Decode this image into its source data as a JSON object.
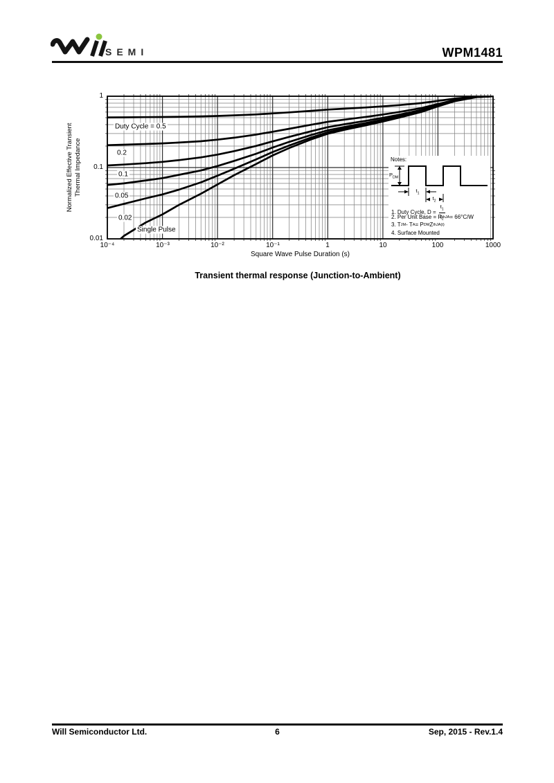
{
  "header": {
    "logo": {
      "brand": "Will",
      "suffix": "SEMI",
      "dot_color": "#8bc53f"
    },
    "part_number": "WPM1481"
  },
  "caption": "Transient thermal response (Junction-to-Ambient)",
  "chart_data": {
    "type": "line",
    "title": "Transient thermal response (Junction-to-Ambient)",
    "xlabel": "Square Wave Pulse Duration (s)",
    "ylabel": [
      "Normalized Effective Transient",
      "Thermal Impedance"
    ],
    "xscale": "log",
    "yscale": "log",
    "xlim": [
      0.0001,
      1000
    ],
    "ylim": [
      0.01,
      1
    ],
    "xtick_values": [
      0.0001,
      0.001,
      0.01,
      0.1,
      1,
      10,
      100,
      1000
    ],
    "xtick_labels": [
      "10⁻⁴",
      "10⁻³",
      "10⁻²",
      "10⁻¹",
      "1",
      "10",
      "100",
      "1000"
    ],
    "ytick_values": [
      1,
      0.1,
      0.01
    ],
    "ytick_labels": [
      "1",
      "0.1",
      "0.01"
    ],
    "grid": "log-log, major and minor gridlines on",
    "line_color": "#000000",
    "series": [
      {
        "name": "duty-0p5",
        "label": "Duty Cycle = 0.5",
        "duty_cycle": 0.5,
        "label_anchor": [
          0.00013,
          0.374
        ],
        "x": [
          0.0001,
          0.0002,
          0.0005,
          0.001,
          0.002,
          0.005,
          0.01,
          0.02,
          0.05,
          0.1,
          0.2,
          0.5,
          1,
          2,
          5,
          10,
          20,
          50,
          100,
          200,
          500,
          1000
        ],
        "y": [
          0.504,
          0.506,
          0.509,
          0.511,
          0.515,
          0.522,
          0.529,
          0.539,
          0.556,
          0.574,
          0.594,
          0.624,
          0.649,
          0.669,
          0.696,
          0.721,
          0.751,
          0.801,
          0.861,
          0.926,
          0.986,
          1.0
        ]
      },
      {
        "name": "duty-0p2",
        "label": "0.2",
        "duty_cycle": 0.2,
        "label_anchor": [
          0.00014,
          0.16
        ],
        "x": [
          0.0001,
          0.0002,
          0.0005,
          0.001,
          0.002,
          0.005,
          0.01,
          0.02,
          0.05,
          0.1,
          0.2,
          0.5,
          1,
          2,
          5,
          10,
          20,
          50,
          100,
          200,
          500,
          1000
        ],
        "y": [
          0.206,
          0.209,
          0.214,
          0.218,
          0.224,
          0.234,
          0.246,
          0.262,
          0.29,
          0.318,
          0.35,
          0.398,
          0.438,
          0.47,
          0.514,
          0.554,
          0.602,
          0.682,
          0.778,
          0.882,
          0.978,
          1.0
        ]
      },
      {
        "name": "duty-0p1",
        "label": "0.1",
        "duty_cycle": 0.1,
        "label_anchor": [
          0.00015,
          0.08
        ],
        "x": [
          0.0001,
          0.0002,
          0.0005,
          0.001,
          0.002,
          0.005,
          0.01,
          0.02,
          0.05,
          0.1,
          0.2,
          0.5,
          1,
          2,
          5,
          10,
          20,
          50,
          100,
          200,
          500,
          1000
        ],
        "y": [
          0.107,
          0.11,
          0.115,
          0.12,
          0.127,
          0.139,
          0.152,
          0.17,
          0.201,
          0.233,
          0.269,
          0.323,
          0.368,
          0.404,
          0.453,
          0.498,
          0.552,
          0.642,
          0.75,
          0.867,
          0.975,
          1.0
        ]
      },
      {
        "name": "duty-0p05",
        "label": "0.05",
        "duty_cycle": 0.05,
        "label_anchor": [
          0.00013,
          0.04
        ],
        "x": [
          0.0001,
          0.0002,
          0.0005,
          0.001,
          0.002,
          0.005,
          0.01,
          0.02,
          0.05,
          0.1,
          0.2,
          0.5,
          1,
          2,
          5,
          10,
          20,
          50,
          100,
          200,
          500,
          1000
        ],
        "y": [
          0.057,
          0.06,
          0.066,
          0.071,
          0.079,
          0.091,
          0.105,
          0.124,
          0.156,
          0.191,
          0.229,
          0.286,
          0.333,
          0.371,
          0.422,
          0.47,
          0.527,
          0.622,
          0.736,
          0.859,
          0.973,
          1.0
        ]
      },
      {
        "name": "duty-0p02",
        "label": "0.02",
        "duty_cycle": 0.02,
        "label_anchor": [
          0.00015,
          0.0196
        ],
        "x": [
          0.0001,
          0.0002,
          0.0005,
          0.001,
          0.002,
          0.005,
          0.01,
          0.02,
          0.05,
          0.1,
          0.2,
          0.5,
          1,
          2,
          5,
          10,
          20,
          50,
          100,
          200,
          500,
          1000
        ],
        "y": [
          0.027,
          0.031,
          0.037,
          0.042,
          0.049,
          0.062,
          0.077,
          0.096,
          0.13,
          0.165,
          0.204,
          0.263,
          0.312,
          0.351,
          0.404,
          0.453,
          0.512,
          0.61,
          0.728,
          0.855,
          0.973,
          1.0
        ]
      },
      {
        "name": "single-pulse",
        "label": "Single Pulse",
        "duty_cycle": 0,
        "label_anchor": [
          0.00033,
          0.0134
        ],
        "x": [
          0.00015,
          0.0002,
          0.0005,
          0.001,
          0.002,
          0.005,
          0.01,
          0.02,
          0.05,
          0.1,
          0.2,
          0.5,
          1,
          2,
          5,
          10,
          20,
          50,
          100,
          200,
          500,
          1000
        ],
        "y": [
          0.009,
          0.011,
          0.017,
          0.022,
          0.03,
          0.043,
          0.058,
          0.078,
          0.112,
          0.148,
          0.188,
          0.248,
          0.298,
          0.338,
          0.392,
          0.442,
          0.502,
          0.602,
          0.722,
          0.852,
          0.972,
          1.0
        ]
      }
    ],
    "notes": {
      "heading": "Notes:",
      "waveform": {
        "amplitude_label": {
          "base": "P",
          "sub": "DM"
        },
        "pulse_width_label": {
          "base": "t",
          "sub": "1"
        },
        "period_label": {
          "base": "t",
          "sub": "2"
        }
      },
      "items": {
        "item1": {
          "prefix": "1. Duty Cycle, D =",
          "frac_num_base": "t",
          "frac_num_sub": "1",
          "frac_den_base": "t",
          "frac_den_sub": "2"
        },
        "item2": {
          "p1": "2. Per Unit Base = R",
          "sub1": "thJA",
          "p2": " = 66 ",
          "p3": "°C/W"
        },
        "item3": {
          "p1": "3. T",
          "sub1": "JM",
          "p2": " - T",
          "sub2": "A",
          "p3": " = P",
          "sub3": "DM",
          "p4": "Z",
          "sub4": "thJA",
          "sup": "(t)"
        },
        "item4": "4. Surface Mounted"
      }
    }
  },
  "footer": {
    "company": "Will Semiconductor Ltd.",
    "page": "6",
    "date_rev": "Sep, 2015 - Rev.1.4"
  }
}
